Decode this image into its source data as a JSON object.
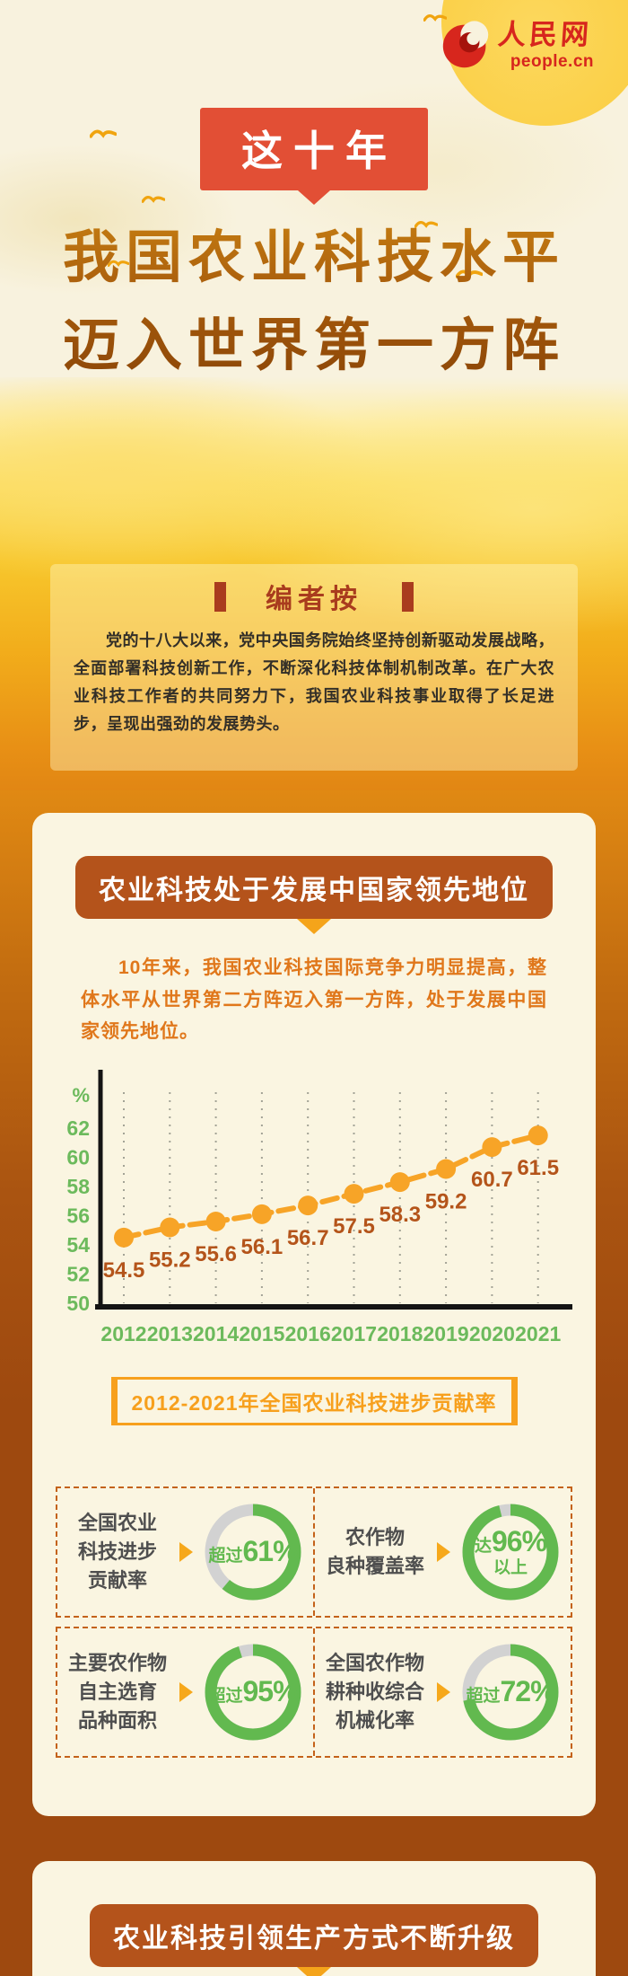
{
  "logo": {
    "site_name": "人民网",
    "site_domain": "people.cn"
  },
  "tag_banner": "这十年",
  "main_title": {
    "line1": "我国农业科技水平",
    "line2": "迈入世界第一方阵"
  },
  "editor_note": {
    "title": "编者按",
    "body": "党的十八大以来，党中央国务院始终坚持创新驱动发展战略，全面部署科技创新工作，不断深化科技体制机制改革。在广大农业科技工作者的共同努力下，我国农业科技事业取得了长足进步，呈现出强劲的发展势头。"
  },
  "section1": {
    "header": "农业科技处于发展中国家领先地位",
    "intro": "10年来，我国农业科技国际竞争力明显提高，整体水平从世界第二方阵迈入第一方阵，处于发展中国家领先地位。",
    "chart_caption": "2012-2021年全国农业科技进步贡献率",
    "stats": [
      {
        "label_lines": [
          "全国农业",
          "科技进步",
          "贡献率"
        ],
        "prefix": "超过",
        "value": "61%",
        "suffix": "",
        "percent": 61
      },
      {
        "label_lines": [
          "农作物",
          "良种覆盖率"
        ],
        "prefix": "达",
        "value": "96%",
        "suffix": "以上",
        "percent": 96
      },
      {
        "label_lines": [
          "主要农作物",
          "自主选育",
          "品种面积"
        ],
        "prefix": "超过",
        "value": "95%",
        "suffix": "",
        "percent": 95
      },
      {
        "label_lines": [
          "全国农作物",
          "耕种收综合",
          "机械化率"
        ],
        "prefix": "超过",
        "value": "72%",
        "suffix": "",
        "percent": 72
      }
    ]
  },
  "section2": {
    "header": "农业科技引领生产方式不断升级"
  },
  "chart_data": {
    "type": "line",
    "title": "2012-2021年全国农业科技进步贡献率",
    "x": [
      2012,
      2013,
      2014,
      2015,
      2016,
      2017,
      2018,
      2019,
      2020,
      2021
    ],
    "values": [
      54.5,
      55.2,
      55.6,
      56.1,
      56.7,
      57.5,
      58.3,
      59.2,
      60.7,
      61.5
    ],
    "unit": "%",
    "ylim": [
      50,
      62
    ],
    "yticks": [
      62,
      60,
      58,
      56,
      54,
      52,
      50
    ],
    "grid": "vertical-dotted",
    "legend": "none",
    "line_color": "#f7a427",
    "label_color": "#b4541a",
    "axis_color": "#6cba5c"
  },
  "colors": {
    "tag_red": "#e24f35",
    "pill_brown": "#b4531b",
    "intro_orange": "#e0771b",
    "caption_orange": "#f7a01d",
    "donut_green": "#62b94f",
    "donut_track": "#d2d2d2",
    "dashed_border": "#c4621a",
    "card_bg": "#faf5e1",
    "page_bottom": "#9e490f"
  }
}
